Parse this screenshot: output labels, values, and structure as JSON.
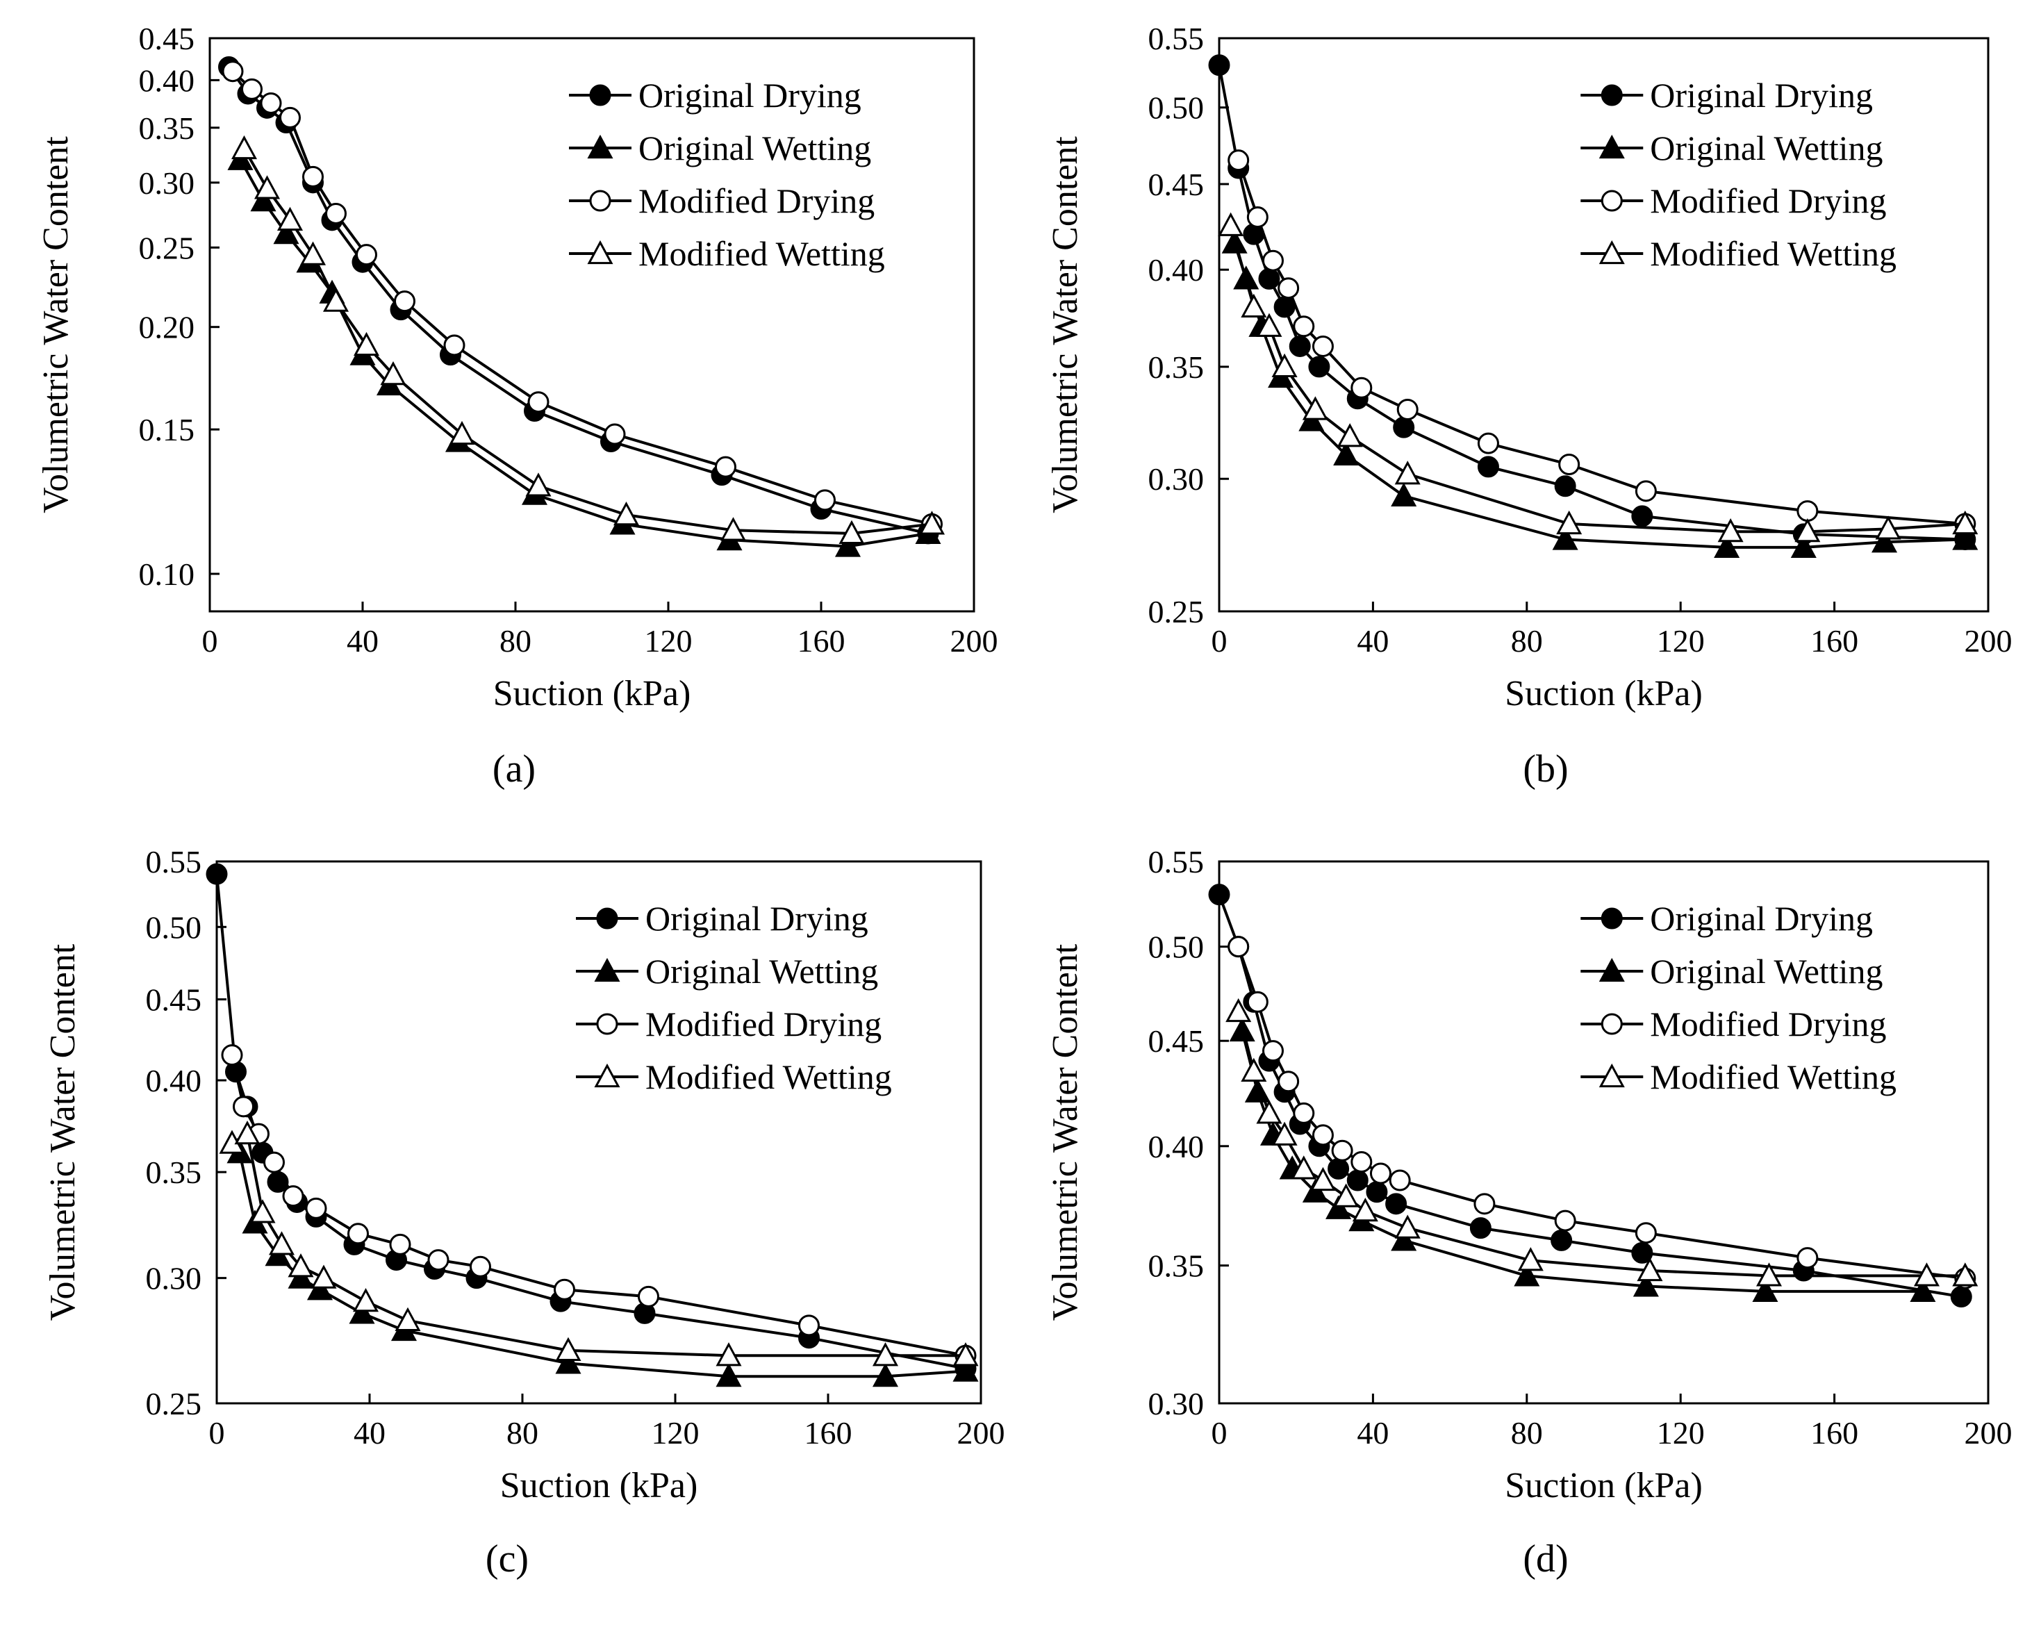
{
  "figure": {
    "panel_labels": [
      "(a)",
      "(b)",
      "(c)",
      "(d)"
    ]
  },
  "chart_data": [
    {
      "type": "line",
      "panel": "(a)",
      "xlabel": "Suction (kPa)",
      "ylabel": "Volumetric Water Content",
      "yscale": "log",
      "xlim": [
        0,
        200
      ],
      "ylim": [
        0.09,
        0.45
      ],
      "xticks": [
        0,
        40,
        80,
        120,
        160,
        200
      ],
      "xtick_labels": [
        "0",
        "40",
        "80",
        "120",
        "160",
        "200"
      ],
      "yticks": [
        0.1,
        0.15,
        0.2,
        0.25,
        0.3,
        0.35,
        0.4,
        0.45
      ],
      "ytick_labels": [
        "0.10",
        "0.15",
        "0.20",
        "0.25",
        "0.30",
        "0.35",
        "0.40",
        "0.45"
      ],
      "legend": "top-right",
      "series": [
        {
          "name": "Original Drying",
          "marker": "filled-circle",
          "x": [
            5,
            10,
            15,
            20,
            27,
            32,
            40,
            50,
            63,
            85,
            105,
            134,
            160,
            188
          ],
          "y": [
            0.415,
            0.385,
            0.37,
            0.355,
            0.3,
            0.27,
            0.24,
            0.21,
            0.185,
            0.158,
            0.145,
            0.132,
            0.12,
            0.112
          ]
        },
        {
          "name": "Original Wetting",
          "marker": "filled-triangle",
          "x": [
            8,
            14,
            20,
            26,
            32,
            40,
            47,
            65,
            85,
            108,
            136,
            167,
            188
          ],
          "y": [
            0.32,
            0.285,
            0.26,
            0.24,
            0.22,
            0.185,
            0.17,
            0.145,
            0.125,
            0.115,
            0.11,
            0.108,
            0.112
          ]
        },
        {
          "name": "Modified Drying",
          "marker": "open-circle",
          "x": [
            6,
            11,
            16,
            21,
            27,
            33,
            41,
            51,
            64,
            86,
            106,
            135,
            161,
            189
          ],
          "y": [
            0.41,
            0.39,
            0.375,
            0.36,
            0.305,
            0.275,
            0.245,
            0.215,
            0.19,
            0.162,
            0.148,
            0.135,
            0.123,
            0.115
          ]
        },
        {
          "name": "Modified Wetting",
          "marker": "open-triangle",
          "x": [
            9,
            15,
            21,
            27,
            33,
            41,
            48,
            66,
            86,
            109,
            137,
            168,
            189
          ],
          "y": [
            0.33,
            0.295,
            0.27,
            0.245,
            0.215,
            0.19,
            0.175,
            0.148,
            0.128,
            0.118,
            0.113,
            0.112,
            0.115
          ]
        }
      ]
    },
    {
      "type": "line",
      "panel": "(b)",
      "xlabel": "Suction (kPa)",
      "ylabel": "Volumetric Water Content",
      "yscale": "log",
      "xlim": [
        0,
        200
      ],
      "ylim": [
        0.25,
        0.55
      ],
      "xticks": [
        0,
        40,
        80,
        120,
        160,
        200
      ],
      "xtick_labels": [
        "0",
        "40",
        "80",
        "120",
        "160",
        "200"
      ],
      "yticks": [
        0.25,
        0.3,
        0.35,
        0.4,
        0.45,
        0.5,
        0.55
      ],
      "ytick_labels": [
        "0.25",
        "0.30",
        "0.35",
        "0.40",
        "0.45",
        "0.50",
        "0.55"
      ],
      "legend": "top-right",
      "series": [
        {
          "name": "Original Drying",
          "marker": "filled-circle",
          "x": [
            0,
            5,
            9,
            13,
            17,
            21,
            26,
            36,
            48,
            70,
            90,
            110,
            152,
            194
          ],
          "y": [
            0.53,
            0.46,
            0.42,
            0.395,
            0.38,
            0.36,
            0.35,
            0.335,
            0.322,
            0.305,
            0.297,
            0.285,
            0.278,
            0.276
          ]
        },
        {
          "name": "Original Wetting",
          "marker": "filled-triangle",
          "x": [
            4,
            7,
            11,
            16,
            24,
            33,
            48,
            90,
            132,
            152,
            173,
            194
          ],
          "y": [
            0.415,
            0.395,
            0.37,
            0.345,
            0.325,
            0.31,
            0.293,
            0.276,
            0.273,
            0.273,
            0.275,
            0.276
          ]
        },
        {
          "name": "Modified Drying",
          "marker": "open-circle",
          "x": [
            5,
            10,
            14,
            18,
            22,
            27,
            37,
            49,
            70,
            91,
            111,
            153,
            194
          ],
          "y": [
            0.465,
            0.43,
            0.405,
            0.39,
            0.37,
            0.36,
            0.34,
            0.33,
            0.315,
            0.306,
            0.295,
            0.287,
            0.282
          ]
        },
        {
          "name": "Modified Wetting",
          "marker": "open-triangle",
          "x": [
            3,
            9,
            13,
            17,
            25,
            34,
            49,
            91,
            133,
            153,
            174,
            194
          ],
          "y": [
            0.425,
            0.38,
            0.37,
            0.35,
            0.33,
            0.318,
            0.302,
            0.282,
            0.279,
            0.279,
            0.28,
            0.282
          ]
        }
      ]
    },
    {
      "type": "line",
      "panel": "(c)",
      "xlabel": "Suction (kPa)",
      "ylabel": "Volumetric Water Content",
      "yscale": "log",
      "xlim": [
        0,
        200
      ],
      "ylim": [
        0.25,
        0.55
      ],
      "xticks": [
        0,
        40,
        80,
        120,
        160,
        200
      ],
      "xtick_labels": [
        "0",
        "40",
        "80",
        "120",
        "160",
        "200"
      ],
      "yticks": [
        0.25,
        0.3,
        0.35,
        0.4,
        0.45,
        0.5,
        0.55
      ],
      "ytick_labels": [
        "0.25",
        "0.30",
        "0.35",
        "0.40",
        "0.45",
        "0.50",
        "0.55"
      ],
      "legend": "top-right",
      "series": [
        {
          "name": "Original Drying",
          "marker": "filled-circle",
          "x": [
            0,
            5,
            8,
            12,
            16,
            21,
            26,
            36,
            47,
            57,
            68,
            90,
            112,
            155,
            196
          ],
          "y": [
            0.54,
            0.405,
            0.385,
            0.36,
            0.345,
            0.335,
            0.328,
            0.315,
            0.308,
            0.304,
            0.3,
            0.29,
            0.285,
            0.275,
            0.263
          ]
        },
        {
          "name": "Original Wetting",
          "marker": "filled-triangle",
          "x": [
            6,
            10,
            16,
            22,
            27,
            38,
            49,
            92,
            134,
            175,
            196
          ],
          "y": [
            0.36,
            0.325,
            0.31,
            0.3,
            0.295,
            0.285,
            0.278,
            0.265,
            0.26,
            0.26,
            0.262
          ]
        },
        {
          "name": "Modified Drying",
          "marker": "open-circle",
          "x": [
            4,
            7,
            11,
            15,
            20,
            26,
            37,
            48,
            58,
            69,
            91,
            113,
            155,
            196
          ],
          "y": [
            0.415,
            0.385,
            0.37,
            0.355,
            0.338,
            0.332,
            0.32,
            0.315,
            0.308,
            0.305,
            0.295,
            0.292,
            0.28,
            0.268
          ]
        },
        {
          "name": "Modified Wetting",
          "marker": "open-triangle",
          "x": [
            4,
            8,
            12,
            17,
            22,
            28,
            39,
            50,
            92,
            134,
            175,
            196
          ],
          "y": [
            0.365,
            0.37,
            0.33,
            0.315,
            0.305,
            0.3,
            0.29,
            0.282,
            0.27,
            0.268,
            0.268,
            0.268
          ]
        }
      ]
    },
    {
      "type": "line",
      "panel": "(d)",
      "xlabel": "Suction (kPa)",
      "ylabel": "Volumetric Water Content",
      "yscale": "log",
      "xlim": [
        0,
        200
      ],
      "ylim": [
        0.3,
        0.55
      ],
      "xticks": [
        0,
        40,
        80,
        120,
        160,
        200
      ],
      "xtick_labels": [
        "0",
        "40",
        "80",
        "120",
        "160",
        "200"
      ],
      "yticks": [
        0.3,
        0.35,
        0.4,
        0.45,
        0.5,
        0.55
      ],
      "ytick_labels": [
        "0.30",
        "0.35",
        "0.40",
        "0.45",
        "0.50",
        "0.55"
      ],
      "legend": "top-right",
      "series": [
        {
          "name": "Original Drying",
          "marker": "filled-circle",
          "x": [
            0,
            5,
            9,
            13,
            17,
            21,
            26,
            31,
            36,
            41,
            46,
            68,
            89,
            110,
            152,
            193
          ],
          "y": [
            0.53,
            0.5,
            0.47,
            0.44,
            0.425,
            0.41,
            0.4,
            0.39,
            0.385,
            0.38,
            0.375,
            0.365,
            0.36,
            0.355,
            0.348,
            0.338
          ]
        },
        {
          "name": "Original Wetting",
          "marker": "filled-triangle",
          "x": [
            6,
            10,
            14,
            19,
            25,
            31,
            37,
            48,
            80,
            111,
            142,
            183
          ],
          "y": [
            0.455,
            0.425,
            0.405,
            0.39,
            0.38,
            0.373,
            0.368,
            0.36,
            0.346,
            0.342,
            0.34,
            0.34
          ]
        },
        {
          "name": "Modified Drying",
          "marker": "open-circle",
          "x": [
            5,
            10,
            14,
            18,
            22,
            27,
            32,
            37,
            42,
            47,
            69,
            90,
            111,
            153,
            194
          ],
          "y": [
            0.5,
            0.47,
            0.445,
            0.43,
            0.415,
            0.405,
            0.398,
            0.393,
            0.388,
            0.385,
            0.375,
            0.368,
            0.363,
            0.353,
            0.345
          ]
        },
        {
          "name": "Modified Wetting",
          "marker": "open-triangle",
          "x": [
            5,
            9,
            13,
            17,
            22,
            27,
            33,
            38,
            49,
            81,
            112,
            143,
            184,
            194
          ],
          "y": [
            0.465,
            0.435,
            0.415,
            0.405,
            0.39,
            0.385,
            0.378,
            0.372,
            0.365,
            0.352,
            0.348,
            0.346,
            0.346,
            0.346
          ]
        }
      ]
    }
  ]
}
